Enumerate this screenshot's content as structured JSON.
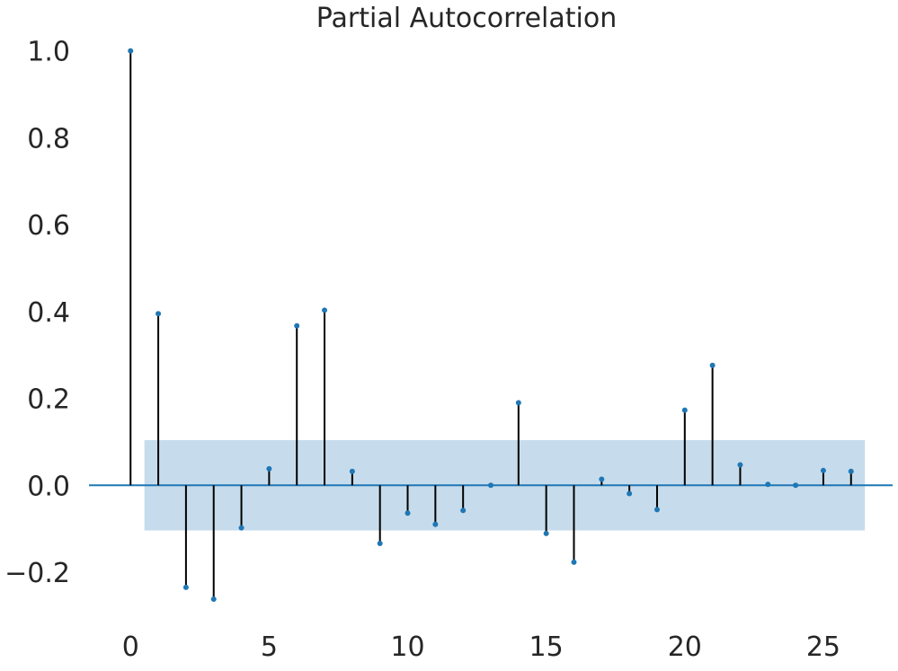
{
  "chart_data": {
    "type": "stem",
    "title": "Partial Autocorrelation",
    "xlabel": "",
    "ylabel": "",
    "x": [
      0,
      1,
      2,
      3,
      4,
      5,
      6,
      7,
      8,
      9,
      10,
      11,
      12,
      13,
      14,
      15,
      16,
      17,
      18,
      19,
      20,
      21,
      22,
      23,
      24,
      25,
      26
    ],
    "values": [
      1.0,
      0.395,
      -0.235,
      -0.262,
      -0.098,
      0.038,
      0.367,
      0.403,
      0.032,
      -0.134,
      -0.064,
      -0.09,
      -0.058,
      0.0,
      0.19,
      -0.111,
      -0.177,
      0.014,
      -0.019,
      -0.056,
      0.173,
      0.276,
      0.047,
      0.002,
      0.0,
      0.034,
      0.032
    ],
    "confidence_band": {
      "lower": -0.104,
      "upper": 0.104,
      "x_start": 0.5,
      "x_end": 26.5
    },
    "xlim": [
      -1.5,
      27.5
    ],
    "ylim": [
      -0.32,
      1.02
    ],
    "x_ticks": [
      0,
      5,
      10,
      15,
      20,
      25
    ],
    "x_tick_labels": [
      "0",
      "5",
      "10",
      "15",
      "20",
      "25"
    ],
    "y_ticks": [
      -0.2,
      0.0,
      0.2,
      0.4,
      0.6,
      0.8,
      1.0
    ],
    "y_tick_labels": [
      "−0.2",
      "0.0",
      "0.2",
      "0.4",
      "0.6",
      "0.8",
      "1.0"
    ],
    "grid": false,
    "legend": "none",
    "colors": {
      "stem": "#000000",
      "marker": "#1f77b4",
      "baseline": "#1f77b4",
      "band": "#c6dcec"
    }
  }
}
